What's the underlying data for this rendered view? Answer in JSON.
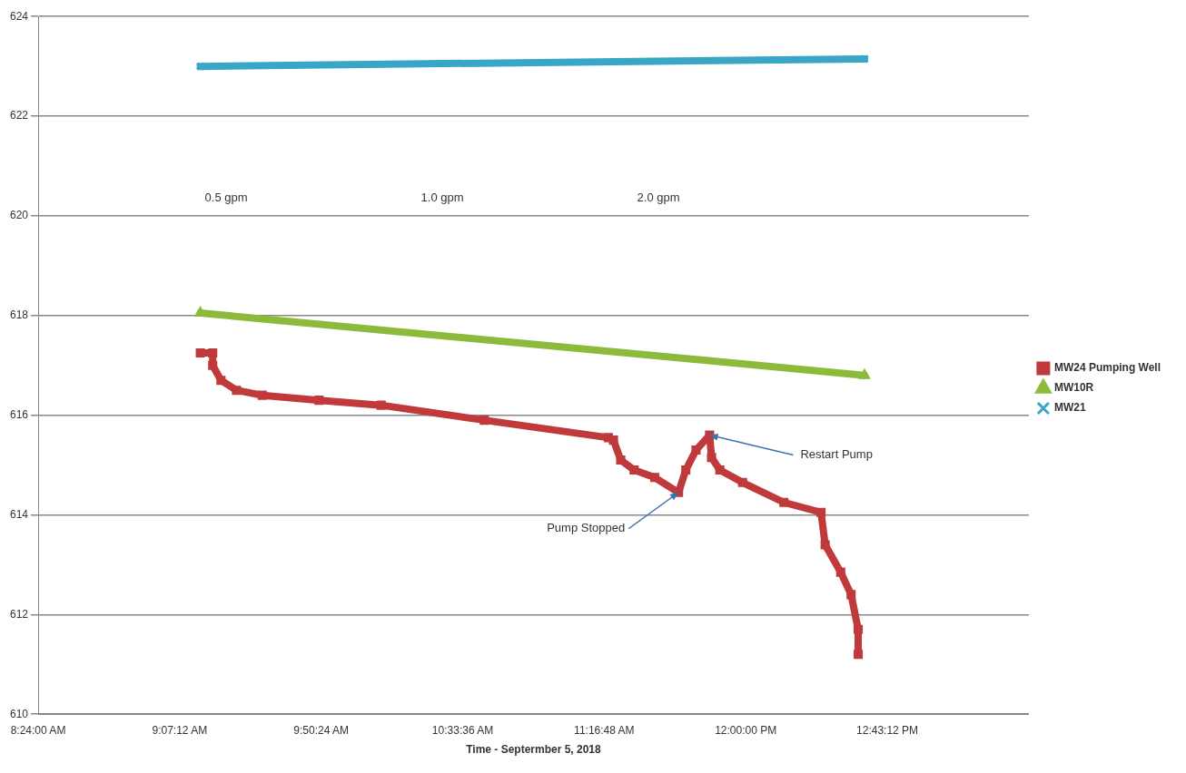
{
  "chart_data": {
    "type": "line",
    "xlabel": "Time - Septermber 5, 2018",
    "xlim": [
      8.4,
      13.44
    ],
    "xticks": [
      {
        "value": 8.4,
        "label": "8:24:00 AM"
      },
      {
        "value": 9.12,
        "label": "9:07:12 AM"
      },
      {
        "value": 9.84,
        "label": "9:50:24 AM"
      },
      {
        "value": 10.56,
        "label": "10:33:36 AM"
      },
      {
        "value": 11.28,
        "label": "11:16:48 AM"
      },
      {
        "value": 12.0,
        "label": "12:00:00 PM"
      },
      {
        "value": 12.72,
        "label": "12:43:12 PM"
      }
    ],
    "ylim": [
      610,
      624
    ],
    "yticks": [
      610,
      612,
      614,
      616,
      618,
      620,
      622,
      624
    ],
    "grid": "y",
    "legend": "right",
    "line_style": "solid",
    "series": [
      {
        "name": "MW24 Pumping Well",
        "color": "#c0393b",
        "marker": "square",
        "x": [
          9.225,
          9.288,
          9.288,
          9.33,
          9.409,
          9.54,
          9.829,
          10.145,
          10.67,
          11.301,
          11.327,
          11.364,
          11.432,
          11.537,
          11.658,
          11.695,
          11.747,
          11.816,
          11.826,
          11.868,
          11.984,
          12.194,
          12.383,
          12.404,
          12.483,
          12.536,
          12.572,
          12.572
        ],
        "values": [
          617.25,
          617.25,
          617.0,
          616.7,
          616.5,
          616.4,
          616.3,
          616.2,
          615.9,
          615.55,
          615.5,
          615.1,
          614.9,
          614.75,
          614.45,
          614.9,
          615.3,
          615.6,
          615.15,
          614.9,
          614.65,
          614.25,
          614.05,
          613.4,
          612.85,
          612.4,
          611.7,
          611.2
        ]
      },
      {
        "name": "MW10R",
        "color": "#8cbb3c",
        "marker": "triangle",
        "x": [
          9.225,
          12.604
        ],
        "values": [
          618.05,
          616.8
        ]
      },
      {
        "name": "MW21",
        "color": "#3aa6c6",
        "marker": "cross",
        "x": [
          9.225,
          12.604
        ],
        "values": [
          623.0,
          623.15
        ]
      }
    ],
    "annotations": [
      "0.5 gpm",
      "1.0 gpm",
      "2.0 gpm",
      {
        "text": "Pump Stopped",
        "x": 11.658,
        "y": 614.45
      },
      {
        "text": "Restart Pump",
        "x": 11.816,
        "y": 615.6
      }
    ]
  }
}
